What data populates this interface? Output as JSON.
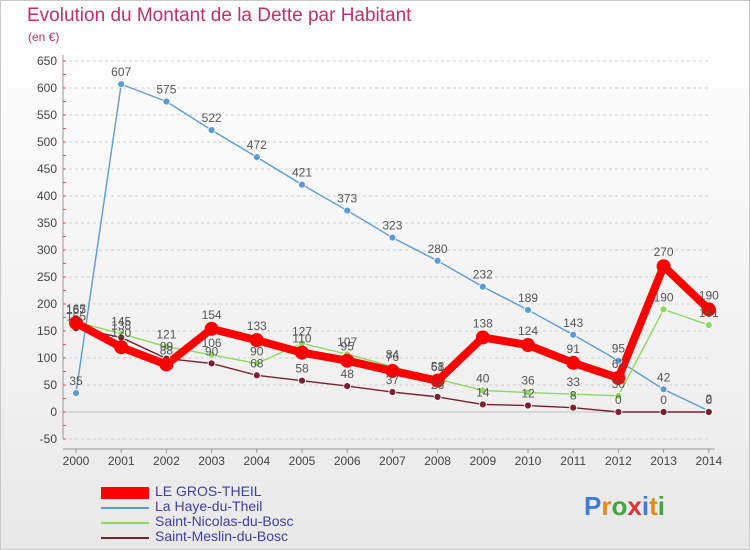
{
  "header": {
    "title": "Evolution du Montant de la Dette par Habitant",
    "subtitle": "(en €)"
  },
  "logo": {
    "text": "Proxiti",
    "letter_colors": [
      "#3b7dd8",
      "#e08a1e",
      "#3fa83f",
      "#e03030",
      "#3b7dd8",
      "#e08a1e",
      "#3fa83f"
    ]
  },
  "chart_data": {
    "type": "line",
    "title": "Evolution du Montant de la Dette par Habitant",
    "subtitle": "(en €)",
    "xlabel": "",
    "ylabel": "",
    "x": [
      "2000",
      "2001",
      "2002",
      "2003",
      "2004",
      "2005",
      "2006",
      "2007",
      "2008",
      "2009",
      "2010",
      "2011",
      "2012",
      "2013",
      "2014"
    ],
    "ylim": [
      -50,
      650
    ],
    "yticks": [
      -50,
      0,
      50,
      100,
      150,
      200,
      250,
      300,
      350,
      400,
      450,
      500,
      550,
      600,
      650
    ],
    "grid": "horizontal dashed",
    "legend_position": "bottom-left",
    "series": [
      {
        "name": "LE GROS-THEIL",
        "color": "#ff0000",
        "emphasis": "thick",
        "values": [
          165,
          120,
          88,
          154,
          133,
          110,
          95,
          76,
          58,
          138,
          124,
          91,
          63,
          270,
          190
        ]
      },
      {
        "name": "La Haye-du-Theil",
        "color": "#5b9bd5",
        "emphasis": "thin",
        "values": [
          35,
          607,
          575,
          522,
          472,
          421,
          373,
          323,
          280,
          232,
          189,
          143,
          95,
          42,
          2
        ]
      },
      {
        "name": "Saint-Nicolas-du-Bosc",
        "color": "#8fd860",
        "emphasis": "thin",
        "values": [
          167,
          145,
          121,
          106,
          90,
          127,
          107,
          84,
          61,
          40,
          36,
          33,
          30,
          190,
          161
        ]
      },
      {
        "name": "Saint-Meslin-du-Bosc",
        "color": "#7a2030",
        "emphasis": "thin",
        "values": [
          155,
          138,
          99,
          90,
          68,
          58,
          48,
          37,
          28,
          14,
          12,
          8,
          0,
          0,
          0
        ]
      }
    ]
  }
}
